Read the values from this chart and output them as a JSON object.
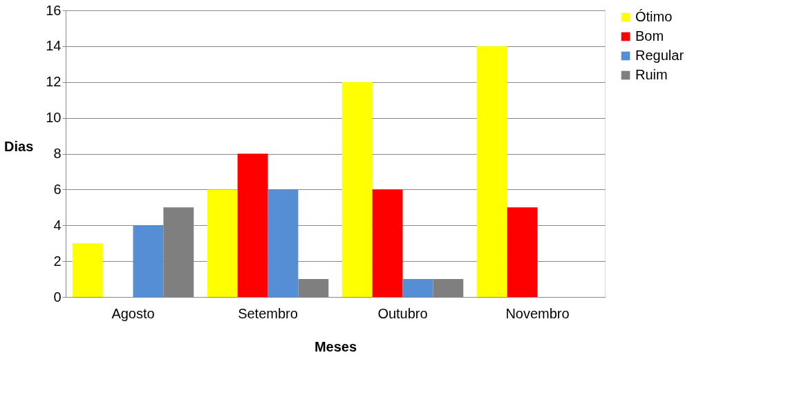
{
  "chart_data": {
    "type": "bar",
    "xlabel": "Meses",
    "ylabel": "Dias",
    "categories": [
      "Agosto",
      "Setembro",
      "Outubro",
      "Novembro"
    ],
    "series": [
      {
        "name": "Ótimo",
        "color": "#ffff00",
        "values": [
          3,
          6,
          12,
          14
        ]
      },
      {
        "name": "Bom",
        "color": "#ff0000",
        "values": [
          null,
          8,
          6,
          5
        ]
      },
      {
        "name": "Regular",
        "color": "#558ed5",
        "values": [
          4,
          6,
          1,
          null
        ]
      },
      {
        "name": "Ruim",
        "color": "#7f7f7f",
        "values": [
          5,
          1,
          1,
          null
        ]
      }
    ],
    "ylim": [
      0,
      16
    ],
    "yticks": [
      0,
      2,
      4,
      6,
      8,
      10,
      12,
      14,
      16
    ],
    "grid": "y",
    "legend": "right"
  }
}
